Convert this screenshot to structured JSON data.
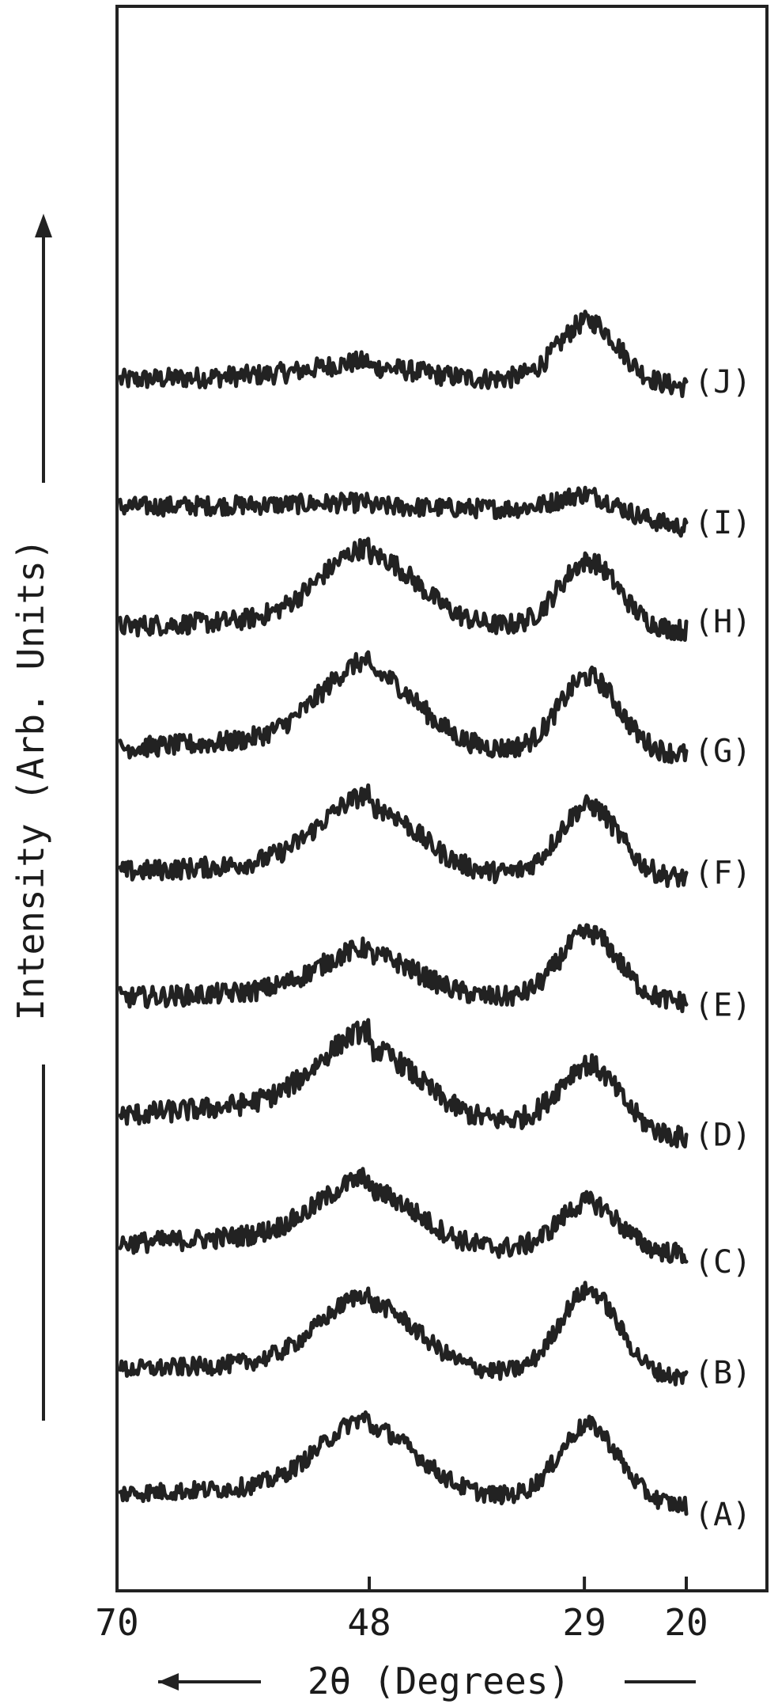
{
  "chart_data": {
    "type": "line",
    "xlabel": "2θ (Degrees)",
    "ylabel": "Intensity (Arb. Units)",
    "xlim": [
      70,
      20
    ],
    "x_ticks": [
      70,
      48,
      29,
      20
    ],
    "x_tick_labels": [
      "70",
      "48",
      "29",
      "20"
    ],
    "y_ticks_shown": false,
    "grid": false,
    "axis_arrows": [
      "x-axis arrow pointing left (toward higher 2θ)",
      "y-axis arrow pointing up (increasing intensity)"
    ],
    "peak_positions_deg": [
      48,
      29
    ],
    "series": [
      {
        "name": "(J)",
        "offset": 9,
        "peak1": 0.1,
        "peak2": 0.55,
        "base_left": 0.12,
        "valley": 0.05,
        "end": -0.02,
        "noise": 0.03
      },
      {
        "name": "(I)",
        "offset": 8,
        "peak1": 0.01,
        "peak2": 0.14,
        "base_left": 0.05,
        "valley": 0.0,
        "end": -0.18,
        "noise": 0.028
      },
      {
        "name": "(H)",
        "offset": 7,
        "peak1": 0.65,
        "peak2": 0.62,
        "base_left": 0.15,
        "valley": 0.05,
        "end": 0.02,
        "noise": 0.03
      },
      {
        "name": "(G)",
        "offset": 6,
        "peak1": 0.7,
        "peak2": 0.7,
        "base_left": 0.2,
        "valley": 0.05,
        "end": 0.02,
        "noise": 0.03
      },
      {
        "name": "(F)",
        "offset": 5,
        "peak1": 0.6,
        "peak2": 0.65,
        "base_left": 0.2,
        "valley": 0.05,
        "end": 0.02,
        "noise": 0.03
      },
      {
        "name": "(E)",
        "offset": 4,
        "peak1": 0.38,
        "peak2": 0.62,
        "base_left": 0.15,
        "valley": 0.05,
        "end": 0.02,
        "noise": 0.03
      },
      {
        "name": "(D)",
        "offset": 3,
        "peak1": 0.62,
        "peak2": 0.55,
        "base_left": 0.3,
        "valley": 0.05,
        "end": -0.1,
        "noise": 0.032
      },
      {
        "name": "(C)",
        "offset": 2,
        "peak1": 0.5,
        "peak2": 0.45,
        "base_left": 0.2,
        "valley": 0.02,
        "end": -0.02,
        "noise": 0.03
      },
      {
        "name": "(B)",
        "offset": 1,
        "peak1": 0.62,
        "peak2": 0.78,
        "base_left": 0.15,
        "valley": 0.02,
        "end": -0.02,
        "noise": 0.026
      },
      {
        "name": "(A)",
        "offset": 0,
        "peak1": 0.62,
        "peak2": 0.68,
        "base_left": 0.15,
        "valley": 0.02,
        "end": -0.06,
        "noise": 0.026
      }
    ]
  }
}
